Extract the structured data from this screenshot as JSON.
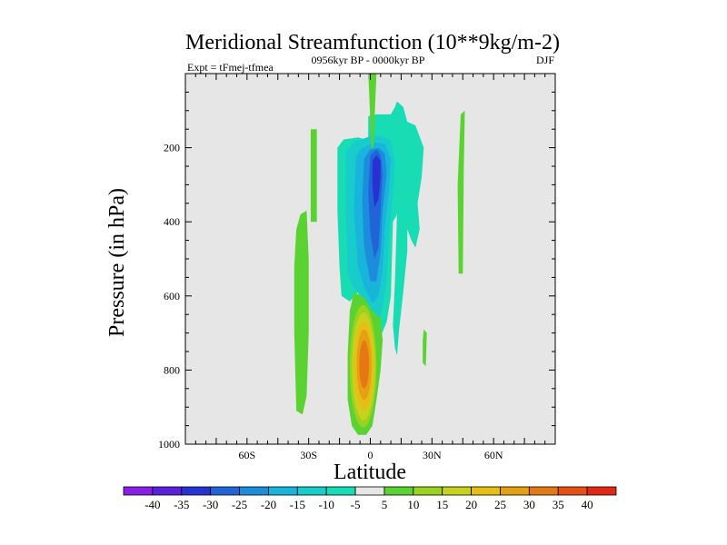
{
  "chart_data": {
    "type": "heatmap",
    "title": "Meridional Streamfunction (10**9kg/m-2)",
    "subtitle_left": "Expt = tFmej-tfmea",
    "subtitle_center": "0956kyr BP - 0000kyr BP",
    "subtitle_right": "DJF",
    "xlabel": "Latitude",
    "ylabel": "Pressure (in hPa)",
    "xlim": [
      -90,
      90
    ],
    "ylim": [
      0,
      1000
    ],
    "y_inverted": true,
    "x_ticks": [
      {
        "value": -60,
        "label": "60S"
      },
      {
        "value": -30,
        "label": "30S"
      },
      {
        "value": 0,
        "label": "0"
      },
      {
        "value": 30,
        "label": "30N"
      },
      {
        "value": 60,
        "label": "60N"
      }
    ],
    "y_ticks": [
      {
        "value": 200,
        "label": "200"
      },
      {
        "value": 400,
        "label": "400"
      },
      {
        "value": 600,
        "label": "600"
      },
      {
        "value": 800,
        "label": "800"
      },
      {
        "value": 1000,
        "label": "1000"
      }
    ],
    "background_color": "#e6e6e6",
    "colorbar": {
      "levels": [
        "-40",
        "-35",
        "-30",
        "-25",
        "-20",
        "-15",
        "-10",
        "-5",
        "5",
        "10",
        "15",
        "20",
        "25",
        "30",
        "35",
        "40"
      ],
      "colors": [
        "#8a1ee6",
        "#5a20dc",
        "#2832d2",
        "#2064d8",
        "#1e8cdc",
        "#18b4dc",
        "#18cccc",
        "#18dcb4",
        "#e6e6e6",
        "#5ad232",
        "#9bd21e",
        "#c8d21e",
        "#e6be14",
        "#e6a014",
        "#e67814",
        "#e65014",
        "#e12814"
      ]
    },
    "features": [
      {
        "name": "neg-cell-core-upper",
        "lat_range": [
          -15,
          15
        ],
        "p_range": [
          0,
          700
        ],
        "min_value": -30,
        "sign": "negative",
        "peak_lat": 3,
        "peak_p": 280
      },
      {
        "name": "neg-cell-extension-nh",
        "lat_range": [
          10,
          24
        ],
        "p_range": [
          80,
          680
        ],
        "min_value": -5,
        "sign": "negative"
      },
      {
        "name": "pos-cell-lower",
        "lat_range": [
          -11,
          6
        ],
        "p_range": [
          580,
          975
        ],
        "max_value": 30,
        "sign": "positive",
        "peak_lat": -3,
        "peak_p": 790
      },
      {
        "name": "pos-strip-sh-35",
        "lat_range": [
          -38,
          -30
        ],
        "p_range": [
          380,
          920
        ],
        "max_value": 5,
        "sign": "positive"
      },
      {
        "name": "pos-strip-sh-28",
        "lat_range": [
          -30,
          -25
        ],
        "p_range": [
          150,
          400
        ],
        "max_value": 5,
        "sign": "positive"
      },
      {
        "name": "pos-strip-nh-45",
        "lat_range": [
          42,
          46
        ],
        "p_range": [
          110,
          540
        ],
        "max_value": 5,
        "sign": "positive"
      },
      {
        "name": "pos-blip-nh-27",
        "lat_range": [
          25,
          28
        ],
        "p_range": [
          690,
          790
        ],
        "max_value": 5,
        "sign": "positive"
      },
      {
        "name": "pos-line-top",
        "lat_range": [
          -1,
          3
        ],
        "p_range": [
          0,
          200
        ],
        "max_value": 5,
        "sign": "positive"
      }
    ]
  }
}
